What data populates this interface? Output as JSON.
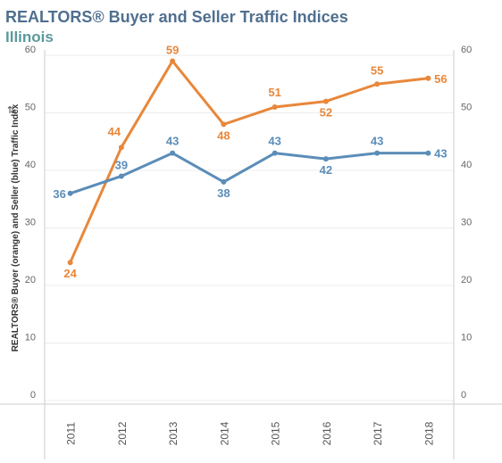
{
  "header": {
    "title": "REALTORS® Buyer and Seller Traffic Indices",
    "subtitle": "Illinois"
  },
  "chart_data": {
    "type": "line",
    "title": "REALTORS® Buyer and Seller Traffic Indices",
    "subtitle": "Illinois",
    "ylabel": "REALTORS® Buyer (orange) and Seller (blue) Traffic Index",
    "xlabel": "",
    "ylim": [
      0,
      60
    ],
    "yticks": [
      "0",
      "10",
      "20",
      "30",
      "40",
      "50",
      "60"
    ],
    "categories": [
      "2011",
      "2012",
      "2013",
      "2014",
      "2015",
      "2016",
      "2017",
      "2018"
    ],
    "series": [
      {
        "color": "#e8873a",
        "values": [
          24,
          44,
          59,
          48,
          51,
          52,
          55,
          56
        ],
        "labels": [
          "24",
          "44",
          "59",
          "48",
          "51",
          "52",
          "55",
          "56"
        ]
      },
      {
        "color": "#5b8db8",
        "values": [
          36,
          39,
          43,
          38,
          43,
          42,
          43,
          43
        ],
        "labels": [
          "36",
          "39",
          "43",
          "38",
          "43",
          "42",
          "43",
          "43"
        ]
      }
    ],
    "grid": true,
    "dual_axis": true
  },
  "icons": {
    "sort": "sort-icon"
  }
}
